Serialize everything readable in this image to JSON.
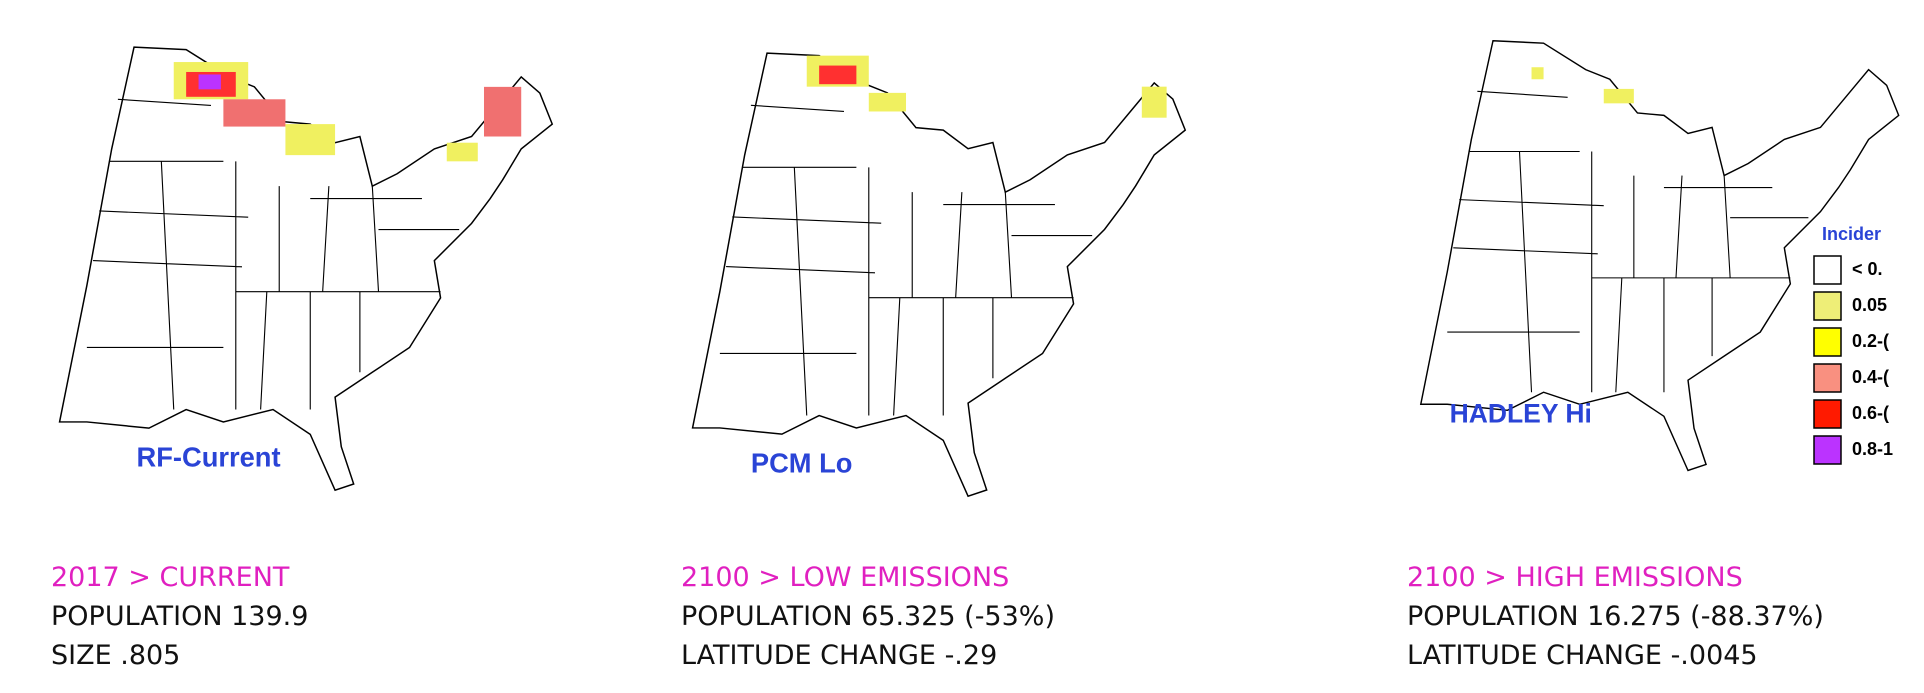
{
  "panels": [
    {
      "map_label": "RF-Current",
      "heading": "2017 > CURRENT",
      "lines": [
        "POPULATION 139.9",
        "SIZE .805"
      ]
    },
    {
      "map_label": "PCM Lo",
      "heading": "2100 > LOW EMISSIONS",
      "lines": [
        "POPULATION 65.325 (-53%)",
        "LATITUDE CHANGE -.29"
      ]
    },
    {
      "map_label": "HADLEY Hi",
      "heading": "2100 > HIGH EMISSIONS",
      "lines": [
        "POPULATION 16.275 (-88.37%)",
        "LATITUDE CHANGE -.0045"
      ]
    }
  ],
  "legend": {
    "title": "Incider",
    "items": [
      "< 0.",
      "0.05",
      "0.2-(",
      "0.4-(",
      "0.6-(",
      "0.8-1"
    ]
  }
}
